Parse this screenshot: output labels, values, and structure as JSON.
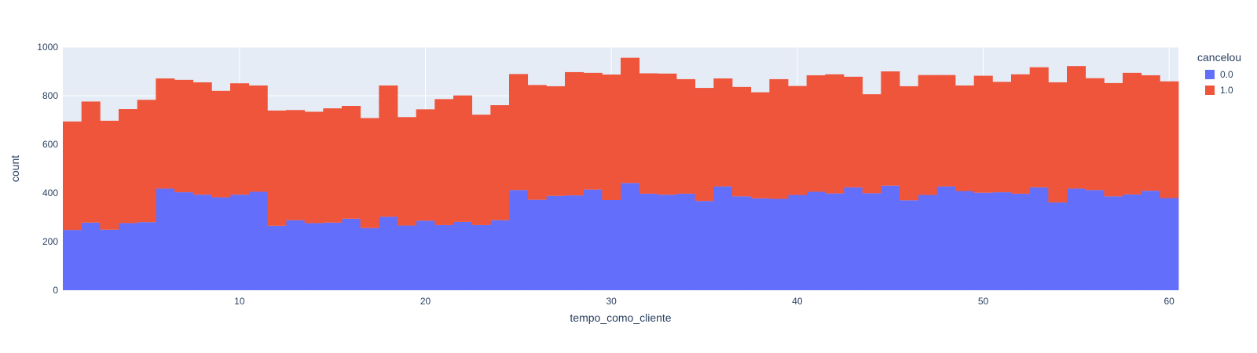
{
  "chart_data": {
    "type": "bar",
    "barmode": "stack",
    "title": "",
    "xlabel": "tempo_como_cliente",
    "ylabel": "count",
    "x": [
      1,
      2,
      3,
      4,
      5,
      6,
      7,
      8,
      9,
      10,
      11,
      12,
      13,
      14,
      15,
      16,
      17,
      18,
      19,
      20,
      21,
      22,
      23,
      24,
      25,
      26,
      27,
      28,
      29,
      30,
      31,
      32,
      33,
      34,
      35,
      36,
      37,
      38,
      39,
      40,
      41,
      42,
      43,
      44,
      45,
      46,
      47,
      48,
      49,
      50,
      51,
      52,
      53,
      54,
      55,
      56,
      57,
      58,
      59,
      60
    ],
    "xlim": [
      0.5,
      60.5
    ],
    "ylim": [
      0,
      1000
    ],
    "xticks": [
      10,
      20,
      30,
      40,
      50,
      60
    ],
    "yticks": [
      0,
      200,
      400,
      600,
      800,
      1000
    ],
    "grid": true,
    "legend_position": "top-right",
    "legend_title": "cancelou",
    "series": [
      {
        "name": "0.0",
        "color": "#636efa",
        "values": [
          248,
          278,
          249,
          276,
          280,
          418,
          403,
          393,
          382,
          393,
          405,
          265,
          288,
          276,
          278,
          294,
          256,
          302,
          266,
          286,
          268,
          281,
          268,
          288,
          412,
          372,
          388,
          390,
          414,
          371,
          441,
          397,
          393,
          397,
          367,
          427,
          386,
          378,
          376,
          392,
          405,
          398,
          423,
          399,
          430,
          370,
          392,
          427,
          408,
          401,
          403,
          397,
          423,
          361,
          418,
          412,
          386,
          394,
          409,
          379
        ]
      },
      {
        "name": "1.0",
        "color": "#ef553b",
        "values": [
          446,
          498,
          448,
          469,
          503,
          453,
          462,
          462,
          438,
          458,
          437,
          474,
          453,
          458,
          470,
          464,
          452,
          540,
          446,
          458,
          518,
          520,
          454,
          473,
          477,
          472,
          451,
          507,
          480,
          516,
          515,
          495,
          498,
          471,
          465,
          444,
          450,
          436,
          492,
          448,
          479,
          490,
          455,
          407,
          470,
          469,
          493,
          458,
          434,
          481,
          454,
          491,
          494,
          494,
          504,
          460,
          466,
          500,
          475,
          480
        ]
      }
    ]
  }
}
